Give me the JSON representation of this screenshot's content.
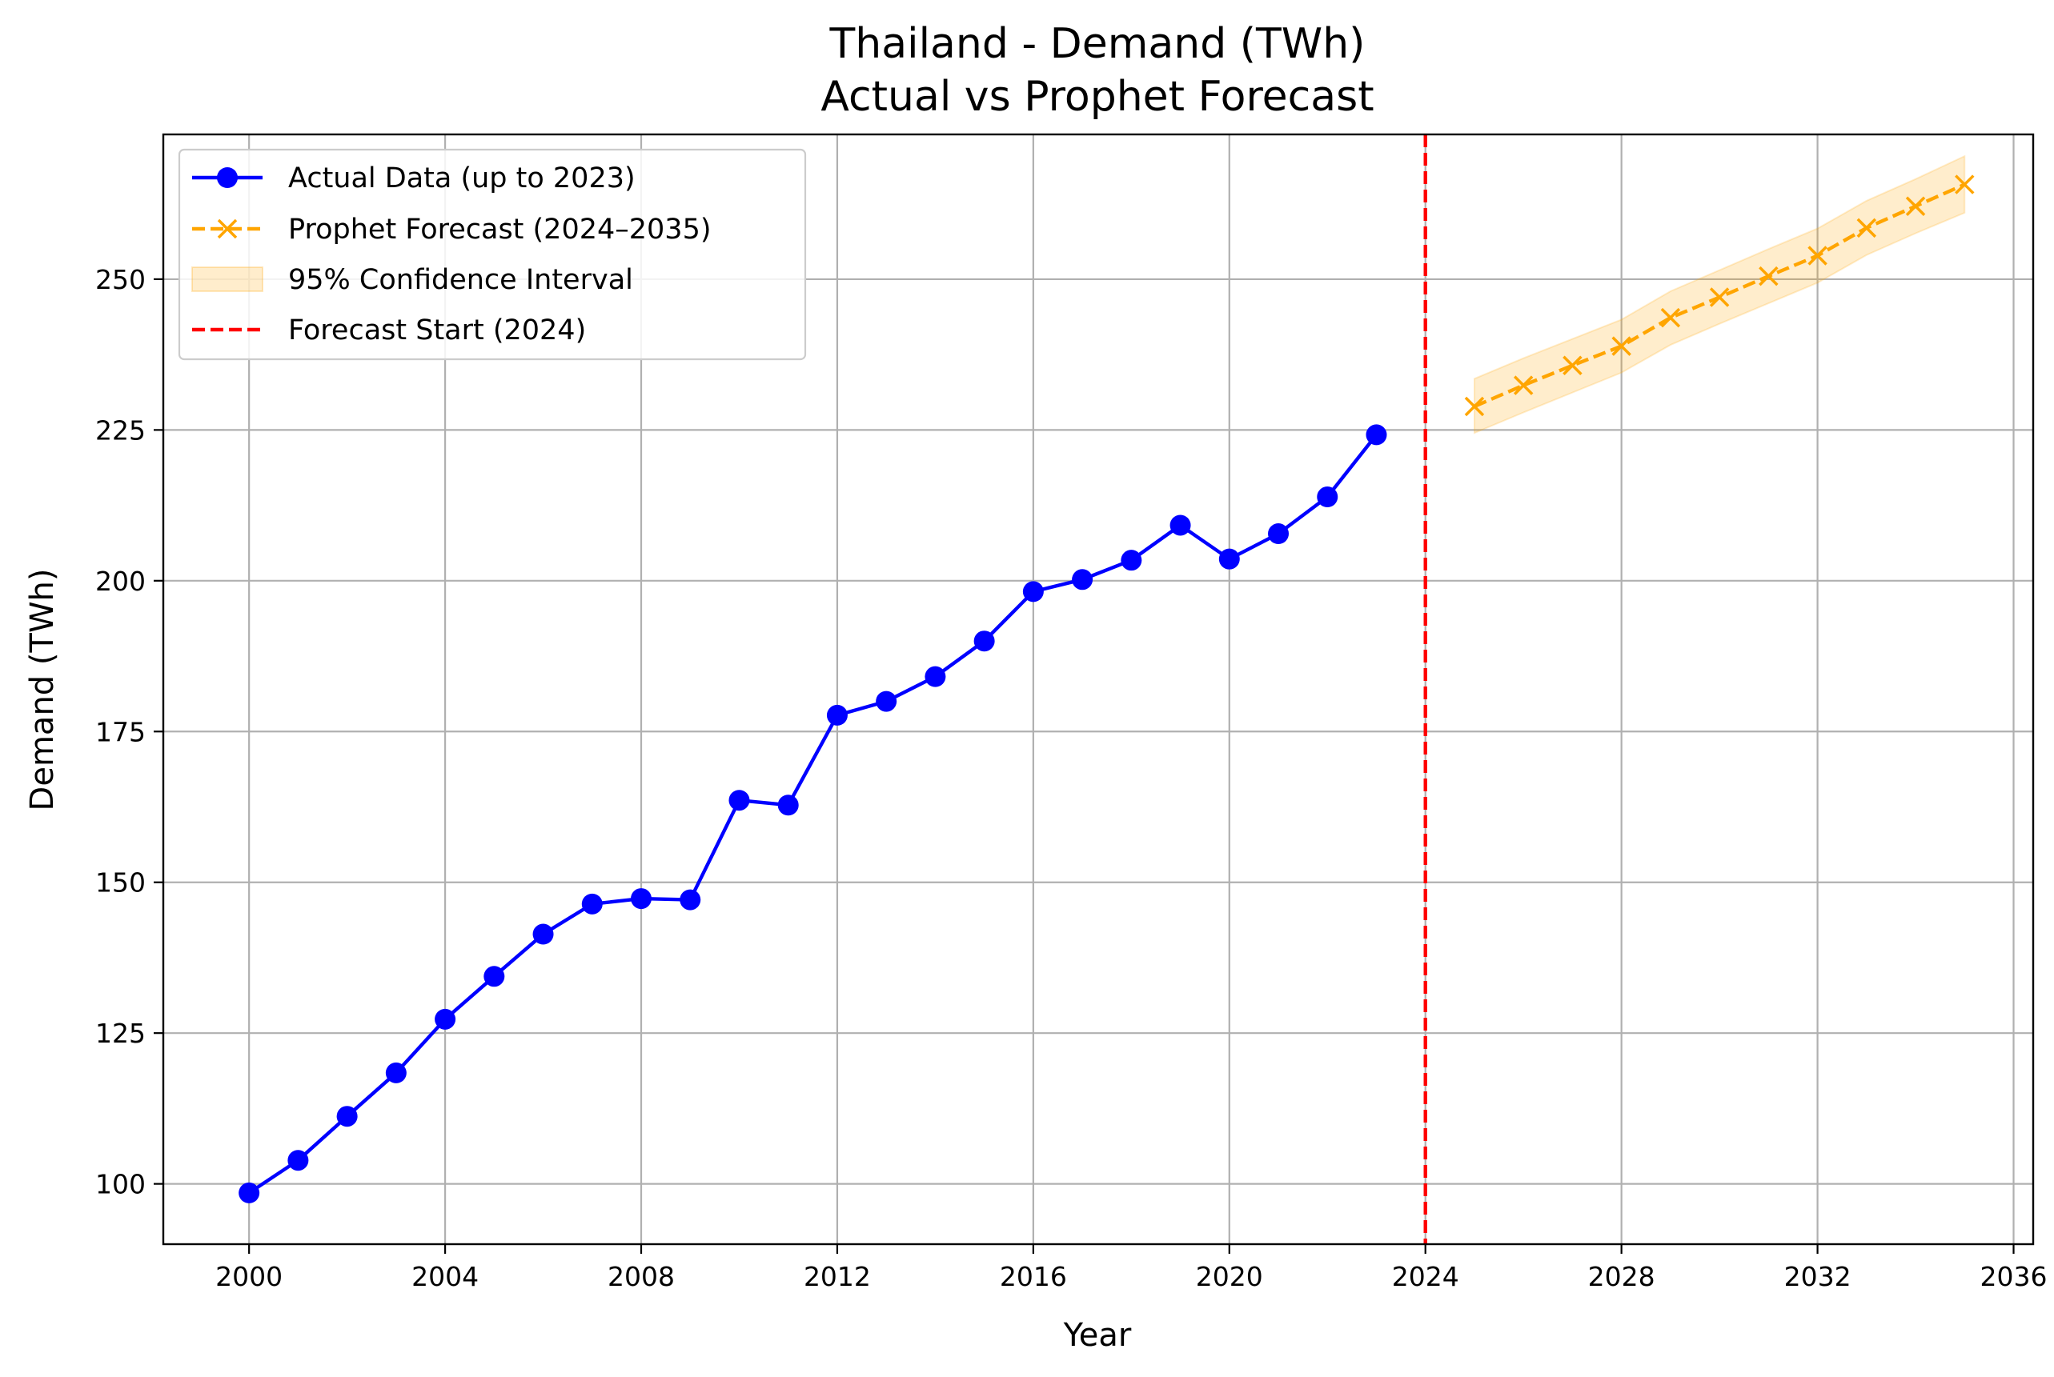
{
  "chart_data": {
    "type": "line",
    "title": "Thailand - Demand (TWh)",
    "subtitle": "Actual vs Prophet Forecast",
    "xlabel": "Year",
    "ylabel": "Demand (TWh)",
    "xlim": [
      1998.25,
      2036.4
    ],
    "ylim": [
      90,
      274
    ],
    "xticks": [
      2000,
      2004,
      2008,
      2012,
      2016,
      2020,
      2024,
      2028,
      2032,
      2036
    ],
    "yticks": [
      100,
      125,
      150,
      175,
      200,
      225,
      250
    ],
    "grid": true,
    "legend_position": "upper-left",
    "legend": [
      "Actual Data (up to 2023)",
      "Prophet Forecast (2024–2035)",
      "95% Confidence Interval",
      "Forecast Start (2024)"
    ],
    "series": [
      {
        "name": "Actual Data (up to 2023)",
        "style": "solid",
        "marker": "circle",
        "color": "#0000ff",
        "x": [
          2000,
          2001,
          2002,
          2003,
          2004,
          2005,
          2006,
          2007,
          2008,
          2009,
          2010,
          2011,
          2012,
          2013,
          2014,
          2015,
          2016,
          2017,
          2018,
          2019,
          2020,
          2021,
          2022,
          2023
        ],
        "y": [
          98.5,
          103.9,
          111.2,
          118.4,
          127.3,
          134.4,
          141.4,
          146.4,
          147.3,
          147.1,
          163.6,
          162.8,
          177.7,
          180.0,
          184.1,
          190.0,
          198.2,
          200.2,
          203.4,
          209.2,
          203.6,
          207.8,
          213.9,
          224.2
        ]
      },
      {
        "name": "Prophet Forecast (2024–2035)",
        "style": "dashed",
        "marker": "x",
        "color": "#ffa500",
        "x": [
          2025,
          2026,
          2027,
          2028,
          2029,
          2030,
          2031,
          2032,
          2033,
          2034,
          2035
        ],
        "y": [
          228.9,
          232.4,
          235.7,
          238.9,
          243.6,
          247.0,
          250.5,
          253.9,
          258.5,
          262.1,
          265.7
        ],
        "ci_lower": [
          224.5,
          227.9,
          231.2,
          234.5,
          239.1,
          242.6,
          246.0,
          249.4,
          254.0,
          257.6,
          261.0
        ],
        "ci_upper": [
          233.5,
          236.9,
          240.1,
          243.3,
          248.0,
          251.5,
          255.0,
          258.4,
          263.0,
          266.6,
          270.4
        ]
      }
    ],
    "vline": {
      "name": "Forecast Start (2024)",
      "x": 2024,
      "color": "#ff0000",
      "style": "dashed"
    },
    "colors": {
      "actual": "#0000ff",
      "forecast": "#ffa500",
      "ci_fill": "#ffa500",
      "vline": "#ff0000",
      "grid": "#b0b0b0"
    }
  }
}
